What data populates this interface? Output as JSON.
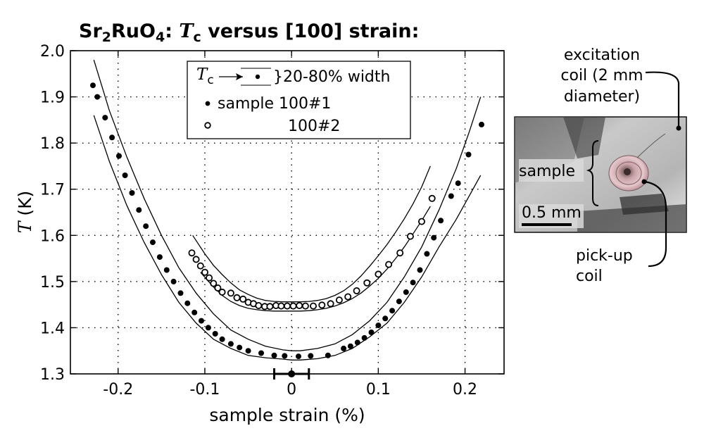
{
  "chart_data": {
    "type": "scatter",
    "title": {
      "compound_parts": [
        "Sr",
        "2",
        "RuO",
        "4"
      ],
      "prefix": ": ",
      "tc_symbol": "T",
      "tc_subscript": "c",
      "suffix": " versus [100] strain:"
    },
    "xlabel": "sample strain (%)",
    "ylabel": {
      "symbol": "T",
      "unit": " (K)"
    },
    "xlim": [
      -0.255,
      0.245
    ],
    "ylim": [
      1.3,
      2.0
    ],
    "xticks": [
      -0.2,
      -0.1,
      0,
      0.1,
      0.2
    ],
    "xtick_labels": [
      "-0.2",
      "-0.1",
      "0",
      "0.1",
      "0.2"
    ],
    "yticks": [
      1.3,
      1.4,
      1.5,
      1.6,
      1.7,
      1.8,
      1.9,
      2.0
    ],
    "ytick_labels": [
      "1.3",
      "1.4",
      "1.5",
      "1.6",
      "1.7",
      "1.8",
      "1.9",
      "2.0"
    ],
    "grid": "dotted",
    "legend": {
      "placement": "top-center",
      "tc_symbol": "T",
      "tc_subscript": "c",
      "width_label": "}20-80% width",
      "sample1_label": "sample 100#1",
      "sample2_label": "100#2"
    },
    "series": [
      {
        "name": "sample 100#1",
        "marker": "filled-circle",
        "x": [
          -0.229,
          -0.224,
          -0.215,
          -0.207,
          -0.199,
          -0.192,
          -0.184,
          -0.176,
          -0.168,
          -0.16,
          -0.152,
          -0.144,
          -0.136,
          -0.128,
          -0.12,
          -0.112,
          -0.104,
          -0.096,
          -0.088,
          -0.08,
          -0.07,
          -0.06,
          -0.05,
          -0.035,
          -0.02,
          -0.008,
          0.008,
          0.022,
          0.042,
          0.06,
          0.068,
          0.076,
          0.084,
          0.092,
          0.1,
          0.108,
          0.116,
          0.124,
          0.132,
          0.14,
          0.148,
          0.156,
          0.164,
          0.172,
          0.184,
          0.192,
          0.204,
          0.219
        ],
        "y": [
          1.925,
          1.9,
          1.855,
          1.812,
          1.772,
          1.73,
          1.692,
          1.655,
          1.62,
          1.585,
          1.553,
          1.525,
          1.5,
          1.475,
          1.453,
          1.433,
          1.415,
          1.4,
          1.387,
          1.375,
          1.365,
          1.357,
          1.35,
          1.345,
          1.34,
          1.339,
          1.338,
          1.339,
          1.34,
          1.355,
          1.36,
          1.368,
          1.378,
          1.39,
          1.405,
          1.42,
          1.437,
          1.457,
          1.477,
          1.498,
          1.525,
          1.56,
          1.595,
          1.632,
          1.685,
          1.713,
          1.775,
          1.84
        ]
      },
      {
        "name": "100#2",
        "marker": "open-circle",
        "x": [
          -0.115,
          -0.11,
          -0.105,
          -0.1,
          -0.095,
          -0.09,
          -0.085,
          -0.08,
          -0.07,
          -0.063,
          -0.056,
          -0.05,
          -0.044,
          -0.038,
          -0.031,
          -0.025,
          -0.018,
          -0.012,
          -0.005,
          0.002,
          0.009,
          0.016,
          0.025,
          0.035,
          0.045,
          0.055,
          0.065,
          0.075,
          0.087,
          0.1,
          0.112,
          0.125,
          0.137,
          0.15,
          0.162
        ],
        "y": [
          1.562,
          1.548,
          1.534,
          1.52,
          1.508,
          1.496,
          1.486,
          1.477,
          1.475,
          1.465,
          1.462,
          1.455,
          1.452,
          1.448,
          1.446,
          1.446,
          1.448,
          1.447,
          1.447,
          1.447,
          1.448,
          1.447,
          1.447,
          1.449,
          1.452,
          1.46,
          1.467,
          1.48,
          1.497,
          1.516,
          1.537,
          1.562,
          1.598,
          1.63,
          1.68
        ]
      }
    ],
    "width_bands": [
      {
        "name": "sample 100#1 upper (80%)",
        "x": [
          -0.228,
          -0.21,
          -0.19,
          -0.17,
          -0.15,
          -0.13,
          -0.11,
          -0.09,
          -0.07,
          -0.05,
          -0.03,
          -0.01,
          0.0,
          0.01,
          0.03,
          0.05,
          0.07,
          0.09,
          0.11,
          0.13,
          0.15,
          0.17,
          0.19,
          0.205,
          0.218
        ],
        "y": [
          1.98,
          1.87,
          1.77,
          1.68,
          1.6,
          1.53,
          1.475,
          1.43,
          1.395,
          1.375,
          1.36,
          1.352,
          1.35,
          1.35,
          1.355,
          1.365,
          1.385,
          1.415,
          1.455,
          1.51,
          1.575,
          1.655,
          1.745,
          1.825,
          1.9
        ]
      },
      {
        "name": "sample 100#1 lower (20%)",
        "x": [
          -0.228,
          -0.21,
          -0.19,
          -0.17,
          -0.15,
          -0.13,
          -0.11,
          -0.09,
          -0.07,
          -0.05,
          -0.03,
          -0.01,
          0.0,
          0.01,
          0.03,
          0.05,
          0.07,
          0.09,
          0.11,
          0.13,
          0.15,
          0.17,
          0.19,
          0.218
        ],
        "y": [
          1.86,
          1.76,
          1.665,
          1.585,
          1.515,
          1.455,
          1.41,
          1.375,
          1.355,
          1.34,
          1.335,
          1.332,
          1.33,
          1.33,
          1.333,
          1.34,
          1.355,
          1.38,
          1.41,
          1.455,
          1.51,
          1.575,
          1.635,
          1.73
        ]
      },
      {
        "name": "sample 100#2 upper (80%)",
        "x": [
          -0.114,
          -0.1,
          -0.09,
          -0.08,
          -0.07,
          -0.06,
          -0.05,
          -0.04,
          -0.03,
          -0.02,
          -0.01,
          0.0,
          0.01,
          0.02,
          0.03,
          0.04,
          0.05,
          0.06,
          0.07,
          0.08,
          0.09,
          0.1,
          0.11,
          0.12,
          0.13,
          0.14,
          0.15,
          0.16
        ],
        "y": [
          1.6,
          1.56,
          1.535,
          1.515,
          1.497,
          1.482,
          1.472,
          1.464,
          1.459,
          1.457,
          1.456,
          1.456,
          1.456,
          1.457,
          1.459,
          1.463,
          1.47,
          1.48,
          1.494,
          1.512,
          1.533,
          1.556,
          1.58,
          1.607,
          1.636,
          1.668,
          1.705,
          1.75
        ]
      },
      {
        "name": "sample 100#2 lower (20%)",
        "x": [
          -0.105,
          -0.09,
          -0.08,
          -0.07,
          -0.06,
          -0.05,
          -0.04,
          -0.03,
          -0.02,
          -0.01,
          0.0,
          0.01,
          0.02,
          0.03,
          0.04,
          0.05,
          0.06,
          0.07,
          0.08,
          0.09,
          0.1,
          0.11,
          0.12,
          0.13,
          0.14,
          0.15,
          0.16
        ],
        "y": [
          1.52,
          1.488,
          1.47,
          1.457,
          1.448,
          1.442,
          1.439,
          1.437,
          1.436,
          1.436,
          1.436,
          1.436,
          1.437,
          1.439,
          1.442,
          1.447,
          1.454,
          1.463,
          1.475,
          1.49,
          1.507,
          1.527,
          1.55,
          1.575,
          1.603,
          1.632,
          1.663
        ]
      }
    ],
    "strain_error_bar": {
      "x": 0,
      "y": 1.3,
      "xerr_low": -0.02,
      "xerr_high": 0.02
    }
  },
  "photo": {
    "excitation_label": [
      "excitation",
      "coil (2 mm",
      "diameter)"
    ],
    "sample_label": "sample",
    "scale_bar_label": "0.5 mm",
    "pickup_label": [
      "pick-up",
      "coil"
    ]
  }
}
